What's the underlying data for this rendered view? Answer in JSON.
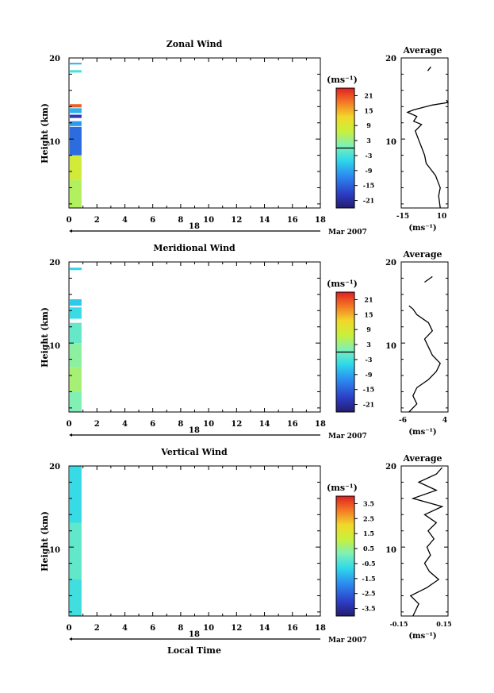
{
  "figure": {
    "date_label": "Mar 2007",
    "day_label": "18",
    "xlabel": "Local Time",
    "ylabel": "Height (km)",
    "cbar_unit": "(ms⁻¹)",
    "avg_title": "Average",
    "avg_xlabel": "(ms⁻¹)"
  },
  "chart_data": [
    {
      "type": "heatmap",
      "title": "Zonal Wind",
      "xlabel": "",
      "ylabel": "Height (km)",
      "xlim": [
        0,
        18
      ],
      "ylim": [
        1.5,
        20
      ],
      "x_ticks": [
        "0",
        "2",
        "4",
        "6",
        "8",
        "10",
        "12",
        "14",
        "16",
        "18"
      ],
      "y_ticks": [
        "10",
        "20"
      ],
      "colorbar": {
        "label": "(ms⁻¹)",
        "min": -24,
        "max": 24,
        "ticks": [
          "21",
          "15",
          "9",
          "3",
          "-3",
          "-9",
          "-15",
          "-21"
        ]
      },
      "data_x_range": [
        0,
        0.9
      ],
      "columns": [
        {
          "h0": 1.5,
          "h1": 5,
          "value": 5
        },
        {
          "h0": 5,
          "h1": 8,
          "value": 8
        },
        {
          "h0": 8,
          "h1": 11.5,
          "value": -14
        },
        {
          "h0": 11.6,
          "h1": 12.2,
          "value": -10
        },
        {
          "h0": 12.6,
          "h1": 13,
          "value": -19
        },
        {
          "h0": 13.2,
          "h1": 13.8,
          "value": -8
        },
        {
          "h0": 13.9,
          "h1": 14.3,
          "value": 20
        },
        {
          "h0": 18.2,
          "h1": 18.5,
          "value": -3
        },
        {
          "h0": 19.2,
          "h1": 19.4,
          "value": -8
        }
      ],
      "average": {
        "title": "Average",
        "xlabel": "(ms⁻¹)",
        "xlim": [
          -18,
          12
        ],
        "x_ticks": [
          "-15",
          "10"
        ],
        "y_ticks": [
          "10",
          "20"
        ],
        "profile": [
          [
            7,
            1.5
          ],
          [
            6,
            3
          ],
          [
            7,
            4
          ],
          [
            5,
            5
          ],
          [
            4,
            5.5
          ],
          [
            0,
            6.5
          ],
          [
            -2,
            7
          ],
          [
            -3,
            8
          ],
          [
            -5,
            9
          ],
          [
            -7,
            10
          ],
          [
            -9,
            11
          ],
          [
            -5,
            11.8
          ],
          [
            -10,
            12.2
          ],
          [
            -8,
            12.8
          ],
          [
            -14,
            13.3
          ],
          [
            -10,
            13.6
          ],
          [
            2,
            14.2
          ],
          [
            12,
            14.5
          ],
          [
            11,
            14.8
          ]
        ],
        "profile_upper": [
          [
            -1,
            18.4
          ],
          [
            1,
            18.9
          ]
        ]
      }
    },
    {
      "type": "heatmap",
      "title": "Meridional Wind",
      "xlabel": "",
      "ylabel": "Height (km)",
      "xlim": [
        0,
        18
      ],
      "ylim": [
        1.5,
        20
      ],
      "x_ticks": [
        "0",
        "2",
        "4",
        "6",
        "8",
        "10",
        "12",
        "14",
        "16",
        "18"
      ],
      "y_ticks": [
        "10",
        "20"
      ],
      "colorbar": {
        "label": "(ms⁻¹)",
        "min": -24,
        "max": 24,
        "ticks": [
          "21",
          "15",
          "9",
          "3",
          "-3",
          "-9",
          "-15",
          "-21"
        ]
      },
      "data_x_range": [
        0,
        0.9
      ],
      "columns": [
        {
          "h0": 1.5,
          "h1": 4,
          "value": 1
        },
        {
          "h0": 4,
          "h1": 7,
          "value": 4
        },
        {
          "h0": 7,
          "h1": 10,
          "value": 2
        },
        {
          "h0": 10,
          "h1": 12.5,
          "value": -1
        },
        {
          "h0": 13,
          "h1": 14.4,
          "value": -4
        },
        {
          "h0": 14.6,
          "h1": 15.4,
          "value": -6
        },
        {
          "h0": 19,
          "h1": 19.3,
          "value": -5
        }
      ],
      "average": {
        "title": "Average",
        "xlabel": "(ms⁻¹)",
        "xlim": [
          -7,
          5
        ],
        "x_ticks": [
          "-6",
          "4"
        ],
        "y_ticks": [
          "10",
          "20"
        ],
        "profile": [
          [
            -5,
            1.5
          ],
          [
            -3,
            2.5
          ],
          [
            -4,
            3.5
          ],
          [
            -3,
            4.5
          ],
          [
            0,
            5.5
          ],
          [
            2,
            6.5
          ],
          [
            3,
            7.5
          ],
          [
            1,
            8.5
          ],
          [
            0,
            9.5
          ],
          [
            -1,
            10.5
          ],
          [
            1,
            11.5
          ],
          [
            0,
            12.5
          ],
          [
            -3,
            13.5
          ],
          [
            -4,
            14.2
          ],
          [
            -5,
            14.6
          ]
        ],
        "profile_upper": [
          [
            -1,
            17.5
          ],
          [
            1,
            18.2
          ]
        ]
      }
    },
    {
      "type": "heatmap",
      "title": "Vertical Wind",
      "xlabel": "Local Time",
      "ylabel": "Height (km)",
      "xlim": [
        0,
        18
      ],
      "ylim": [
        1.5,
        20
      ],
      "x_ticks": [
        "0",
        "2",
        "4",
        "6",
        "8",
        "10",
        "12",
        "14",
        "16",
        "18"
      ],
      "y_ticks": [
        "10",
        "20"
      ],
      "colorbar": {
        "label": "(ms⁻¹)",
        "min": -4,
        "max": 4,
        "ticks": [
          "3.5",
          "2.5",
          "1.5",
          "0.5",
          "-0.5",
          "-1.5",
          "-2.5",
          "-3.5"
        ]
      },
      "data_x_range": [
        0,
        0.9
      ],
      "columns": [
        {
          "h0": 1.5,
          "h1": 6,
          "value": -0.6
        },
        {
          "h0": 6,
          "h1": 13,
          "value": -0.2
        },
        {
          "h0": 13,
          "h1": 20,
          "value": -0.7
        }
      ],
      "average": {
        "title": "Average",
        "xlabel": "(ms⁻¹)",
        "xlim": [
          -0.2,
          0.2
        ],
        "x_ticks": [
          "-0.15",
          "0.15"
        ],
        "y_ticks": [
          "10",
          "20"
        ],
        "profile": [
          [
            -0.1,
            1.5
          ],
          [
            -0.05,
            3
          ],
          [
            -0.12,
            4
          ],
          [
            0.02,
            5
          ],
          [
            0.12,
            6
          ],
          [
            0.04,
            7
          ],
          [
            0.0,
            8
          ],
          [
            0.05,
            9
          ],
          [
            0.02,
            10
          ],
          [
            0.08,
            11
          ],
          [
            0.03,
            12
          ],
          [
            0.1,
            13
          ],
          [
            0.0,
            14
          ],
          [
            0.15,
            15
          ],
          [
            -0.1,
            16
          ],
          [
            0.1,
            17
          ],
          [
            -0.05,
            18
          ],
          [
            0.1,
            19
          ],
          [
            0.15,
            19.8
          ]
        ],
        "profile_upper": []
      }
    }
  ]
}
